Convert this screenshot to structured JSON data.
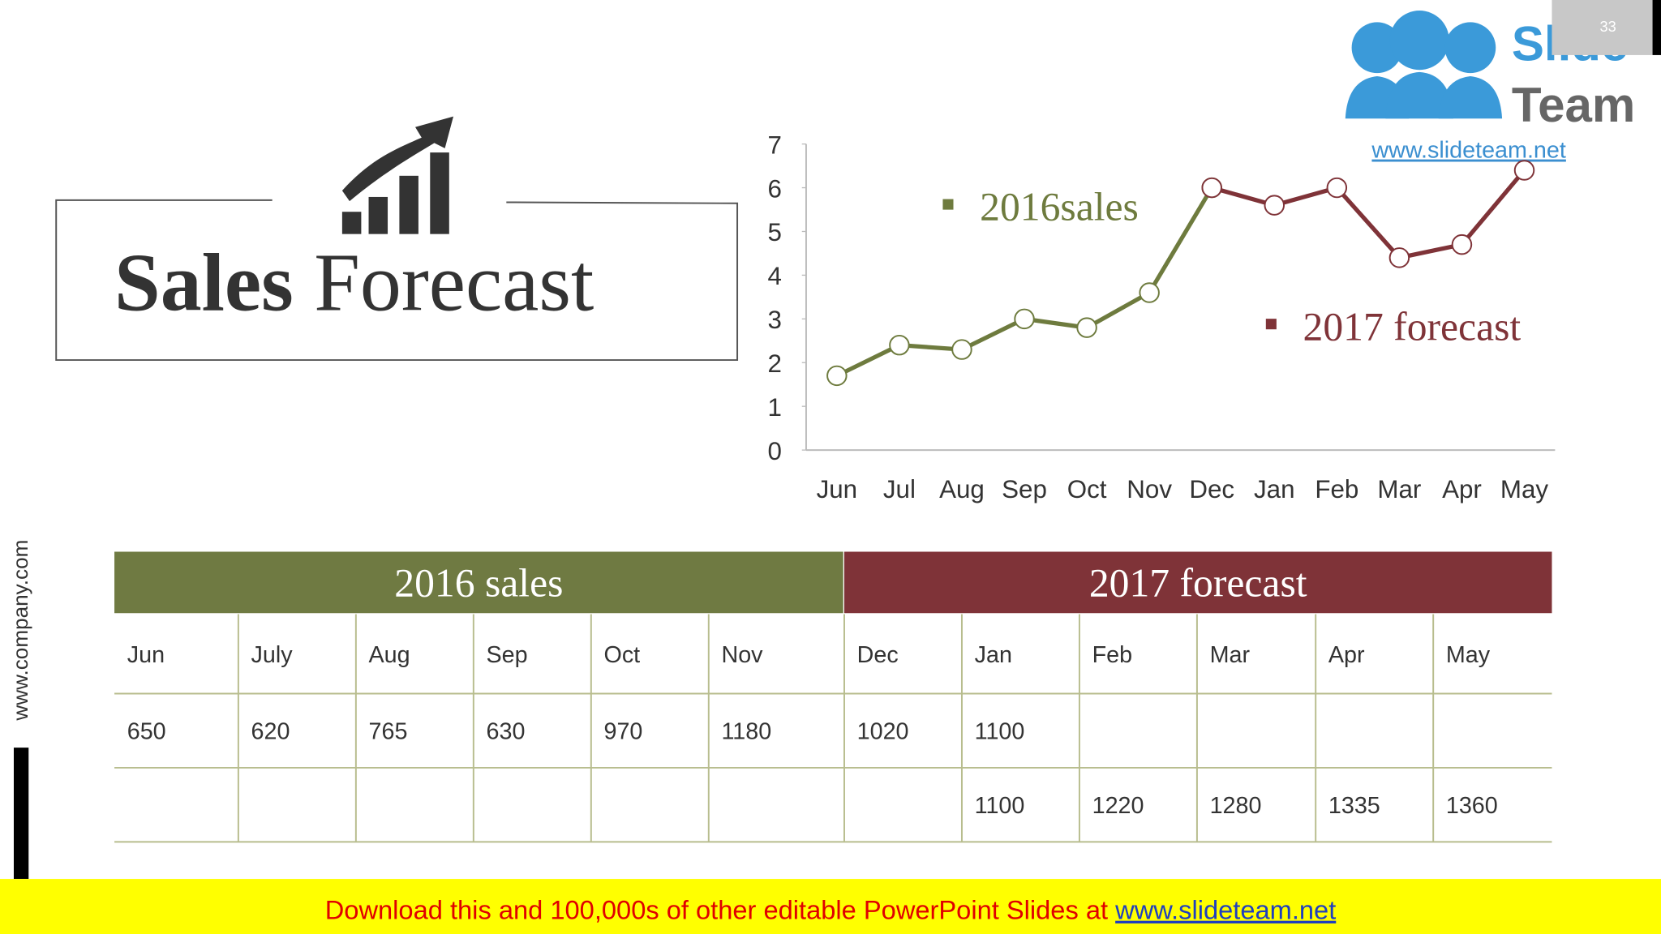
{
  "title_bold": "Sales",
  "title_rest": "Forecast",
  "chart_data": {
    "type": "line",
    "categories": [
      "Jun",
      "Jul",
      "Aug",
      "Sep",
      "Oct",
      "Nov",
      "Dec",
      "Jan",
      "Feb",
      "Mar",
      "Apr",
      "May"
    ],
    "series": [
      {
        "name": "2016sales",
        "color": "#6e7b3e",
        "values": [
          1.7,
          2.4,
          2.3,
          3.0,
          2.8,
          3.6,
          6.0,
          null,
          null,
          null,
          null,
          null
        ]
      },
      {
        "name": "2017 forecast",
        "color": "#7f3338",
        "values": [
          null,
          null,
          null,
          null,
          null,
          null,
          6.0,
          5.6,
          6.0,
          4.4,
          4.7,
          6.4
        ]
      }
    ],
    "ylim": [
      0,
      7
    ],
    "yticks": [
      0,
      1,
      2,
      3,
      4,
      5,
      6,
      7
    ],
    "grid": false
  },
  "table": {
    "groups": [
      "2016 sales",
      "2017 forecast"
    ],
    "rows": [
      [
        "Jun",
        "July",
        "Aug",
        "Sep",
        "Oct",
        "Nov",
        "Dec",
        "Jan",
        "Feb",
        "Mar",
        "Apr",
        "May"
      ],
      [
        650,
        620,
        765,
        630,
        970,
        1180,
        1020,
        1100,
        null,
        null,
        null,
        null
      ],
      [
        null,
        null,
        null,
        null,
        null,
        null,
        null,
        1100,
        1220,
        1280,
        1335,
        1360
      ]
    ]
  },
  "side_text": "www.company.com",
  "logo": {
    "word1": "Slide",
    "word2": "Team",
    "url": "www.slideteam.net"
  },
  "page_number": "33",
  "footer": {
    "text": "Download this and 100,000s of other editable PowerPoint Slides at ",
    "link": "www.slideteam.net"
  }
}
